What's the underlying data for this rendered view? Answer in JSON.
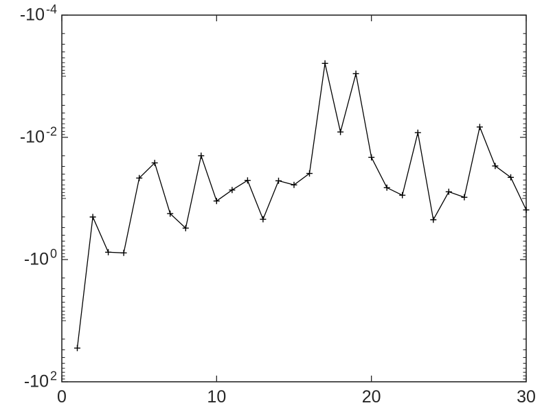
{
  "figure": {
    "background": "#ffffff"
  },
  "chart_data": {
    "type": "line",
    "title": "",
    "xlabel": "",
    "ylabel": "",
    "legend": null,
    "grid": false,
    "line_color": "#000000",
    "marker": "+",
    "marker_color": "#000000",
    "axis_color": "#262626",
    "x_axis": {
      "min": 0,
      "max": 30,
      "ticks": [
        {
          "label": "0",
          "value": 0
        },
        {
          "label": "10",
          "value": 10
        },
        {
          "label": "20",
          "value": 20
        },
        {
          "label": "30",
          "value": 30
        }
      ]
    },
    "y_axis": {
      "scale": "negative-log10",
      "exp_min": -4,
      "exp_max": 2,
      "top_value": -0.0001,
      "bottom_value": -100,
      "ticks": [
        {
          "base": "-10",
          "exp": "-4"
        },
        {
          "base": "-10",
          "exp": "-2"
        },
        {
          "base": "-10",
          "exp": "0"
        },
        {
          "base": "-10",
          "exp": "2"
        }
      ]
    },
    "x": [
      1,
      2,
      3,
      4,
      5,
      6,
      7,
      8,
      9,
      10,
      11,
      12,
      13,
      14,
      15,
      16,
      17,
      18,
      19,
      20,
      21,
      22,
      23,
      24,
      25,
      26,
      27,
      28,
      29,
      30
    ],
    "y": [
      -28.1,
      -0.201,
      -0.759,
      -0.778,
      -0.0464,
      -0.0262,
      -0.177,
      -0.306,
      -0.02,
      -0.11,
      -0.0728,
      -0.0507,
      -0.219,
      -0.0514,
      -0.0601,
      -0.039,
      -0.000617,
      -0.00818,
      -0.000908,
      -0.0213,
      -0.0667,
      -0.0886,
      -0.00839,
      -0.223,
      -0.0778,
      -0.0957,
      -0.00677,
      -0.0294,
      -0.0452,
      -0.154
    ]
  }
}
